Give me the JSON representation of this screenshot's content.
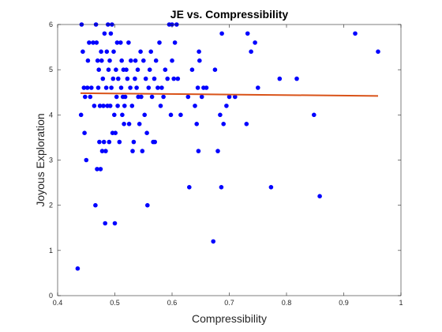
{
  "chart_data": {
    "type": "scatter",
    "title": "JE vs. Compressibility",
    "xlabel": "Compressibility",
    "ylabel": "Joyous Exploration",
    "xlim": [
      0.4,
      1
    ],
    "ylim": [
      0,
      6
    ],
    "xticks": [
      "0.4",
      "0.5",
      "0.6",
      "0.7",
      "0.8",
      "0.9",
      "1"
    ],
    "yticks": [
      "0",
      "1",
      "2",
      "3",
      "4",
      "5",
      "6"
    ],
    "grid": false,
    "marker_color": "#0000ff",
    "fit_color": "#d95319",
    "fit_line": {
      "x": [
        0.44,
        0.96
      ],
      "y": [
        4.48,
        4.42
      ]
    },
    "points": [
      [
        0.435,
        0.6
      ],
      [
        0.441,
        4.0
      ],
      [
        0.442,
        6.0
      ],
      [
        0.444,
        5.4
      ],
      [
        0.446,
        4.6
      ],
      [
        0.447,
        3.6
      ],
      [
        0.448,
        4.4
      ],
      [
        0.45,
        3.0
      ],
      [
        0.452,
        4.6
      ],
      [
        0.453,
        5.2
      ],
      [
        0.455,
        5.6
      ],
      [
        0.457,
        4.4
      ],
      [
        0.459,
        4.6
      ],
      [
        0.462,
        5.6
      ],
      [
        0.464,
        4.2
      ],
      [
        0.466,
        2.0
      ],
      [
        0.467,
        6.0
      ],
      [
        0.468,
        5.6
      ],
      [
        0.469,
        2.8
      ],
      [
        0.47,
        5.2
      ],
      [
        0.471,
        4.6
      ],
      [
        0.472,
        5.0
      ],
      [
        0.473,
        3.4
      ],
      [
        0.474,
        4.2
      ],
      [
        0.475,
        2.8
      ],
      [
        0.476,
        5.4
      ],
      [
        0.477,
        5.2
      ],
      [
        0.478,
        3.2
      ],
      [
        0.479,
        4.8
      ],
      [
        0.48,
        4.2
      ],
      [
        0.481,
        3.4
      ],
      [
        0.482,
        5.8
      ],
      [
        0.483,
        1.6
      ],
      [
        0.484,
        3.2
      ],
      [
        0.485,
        4.6
      ],
      [
        0.486,
        5.4
      ],
      [
        0.487,
        4.2
      ],
      [
        0.488,
        6.0
      ],
      [
        0.489,
        5.0
      ],
      [
        0.49,
        3.4
      ],
      [
        0.491,
        5.2
      ],
      [
        0.492,
        4.2
      ],
      [
        0.493,
        5.8
      ],
      [
        0.494,
        4.6
      ],
      [
        0.495,
        6.0
      ],
      [
        0.496,
        3.6
      ],
      [
        0.497,
        4.8
      ],
      [
        0.498,
        5.4
      ],
      [
        0.499,
        4.0
      ],
      [
        0.5,
        1.6
      ],
      [
        0.501,
        3.6
      ],
      [
        0.502,
        5.0
      ],
      [
        0.503,
        4.4
      ],
      [
        0.504,
        5.6
      ],
      [
        0.505,
        4.2
      ],
      [
        0.506,
        4.8
      ],
      [
        0.508,
        3.4
      ],
      [
        0.51,
        5.6
      ],
      [
        0.511,
        4.6
      ],
      [
        0.512,
        5.2
      ],
      [
        0.513,
        4.0
      ],
      [
        0.514,
        4.4
      ],
      [
        0.515,
        5.0
      ],
      [
        0.516,
        3.8
      ],
      [
        0.517,
        4.2
      ],
      [
        0.518,
        4.4
      ],
      [
        0.52,
        5.0
      ],
      [
        0.522,
        4.8
      ],
      [
        0.524,
        5.6
      ],
      [
        0.525,
        3.8
      ],
      [
        0.527,
        4.6
      ],
      [
        0.528,
        5.2
      ],
      [
        0.53,
        4.2
      ],
      [
        0.531,
        3.2
      ],
      [
        0.533,
        3.4
      ],
      [
        0.535,
        4.8
      ],
      [
        0.536,
        5.2
      ],
      [
        0.538,
        4.6
      ],
      [
        0.54,
        5.0
      ],
      [
        0.541,
        4.4
      ],
      [
        0.543,
        3.8
      ],
      [
        0.545,
        5.4
      ],
      [
        0.546,
        4.4
      ],
      [
        0.548,
        3.2
      ],
      [
        0.55,
        5.2
      ],
      [
        0.552,
        4.0
      ],
      [
        0.554,
        4.8
      ],
      [
        0.556,
        3.6
      ],
      [
        0.557,
        2.0
      ],
      [
        0.559,
        4.6
      ],
      [
        0.561,
        5.0
      ],
      [
        0.563,
        5.4
      ],
      [
        0.565,
        4.4
      ],
      [
        0.567,
        3.4
      ],
      [
        0.569,
        4.8
      ],
      [
        0.57,
        3.4
      ],
      [
        0.572,
        5.2
      ],
      [
        0.575,
        4.6
      ],
      [
        0.578,
        5.6
      ],
      [
        0.58,
        4.2
      ],
      [
        0.582,
        4.6
      ],
      [
        0.585,
        4.4
      ],
      [
        0.588,
        5.0
      ],
      [
        0.592,
        4.8
      ],
      [
        0.595,
        6.0
      ],
      [
        0.598,
        4.0
      ],
      [
        0.6,
        5.2
      ],
      [
        0.6,
        6.0
      ],
      [
        0.603,
        4.8
      ],
      [
        0.605,
        5.6
      ],
      [
        0.608,
        6.0
      ],
      [
        0.61,
        4.8
      ],
      [
        0.615,
        4.0
      ],
      [
        0.628,
        4.4
      ],
      [
        0.63,
        2.4
      ],
      [
        0.635,
        5.0
      ],
      [
        0.64,
        4.2
      ],
      [
        0.643,
        3.8
      ],
      [
        0.645,
        4.6
      ],
      [
        0.646,
        3.2
      ],
      [
        0.647,
        5.4
      ],
      [
        0.648,
        5.2
      ],
      [
        0.652,
        4.4
      ],
      [
        0.655,
        4.6
      ],
      [
        0.66,
        4.6
      ],
      [
        0.672,
        1.2
      ],
      [
        0.675,
        5.0
      ],
      [
        0.68,
        3.2
      ],
      [
        0.684,
        4.0
      ],
      [
        0.686,
        2.4
      ],
      [
        0.687,
        5.8
      ],
      [
        0.69,
        3.8
      ],
      [
        0.695,
        4.2
      ],
      [
        0.7,
        4.4
      ],
      [
        0.71,
        4.4
      ],
      [
        0.73,
        3.8
      ],
      [
        0.732,
        5.8
      ],
      [
        0.738,
        5.4
      ],
      [
        0.745,
        5.6
      ],
      [
        0.75,
        4.6
      ],
      [
        0.773,
        2.4
      ],
      [
        0.788,
        4.8
      ],
      [
        0.818,
        4.8
      ],
      [
        0.848,
        4.0
      ],
      [
        0.858,
        2.2
      ],
      [
        0.92,
        5.8
      ],
      [
        0.96,
        5.4
      ]
    ]
  }
}
